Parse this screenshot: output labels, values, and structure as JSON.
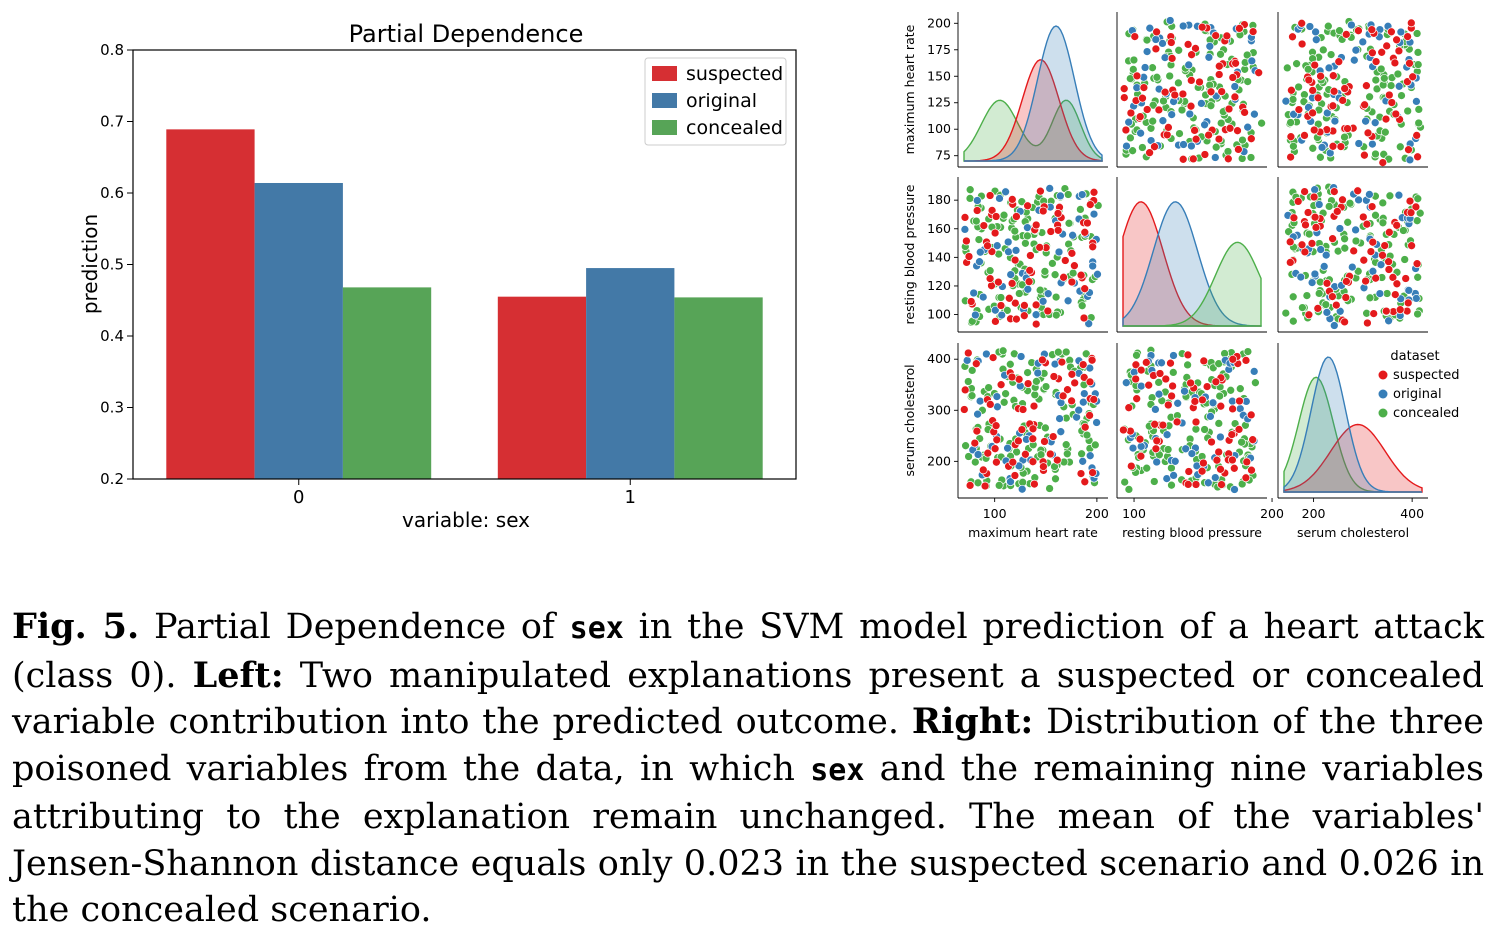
{
  "colors": {
    "suspected": "#d62f33",
    "original": "#4379a7",
    "concealed": "#57a457"
  },
  "scatter_colors": {
    "suspected": "#e41a1c",
    "original": "#377eb8",
    "concealed": "#4daf4a"
  },
  "chart_data": [
    {
      "type": "bar",
      "title": "Partial Dependence",
      "xlabel": "variable: sex",
      "ylabel": "prediction",
      "categories": [
        "0",
        "1"
      ],
      "ylim": [
        0.2,
        0.8
      ],
      "yticks": [
        "0.2",
        "0.3",
        "0.4",
        "0.5",
        "0.6",
        "0.7",
        "0.8"
      ],
      "legend_position": "top-right",
      "series": [
        {
          "name": "suspected",
          "values": [
            0.689,
            0.455
          ]
        },
        {
          "name": "original",
          "values": [
            0.614,
            0.495
          ]
        },
        {
          "name": "concealed",
          "values": [
            0.468,
            0.454
          ]
        }
      ]
    },
    {
      "type": "scatter",
      "subtype": "pairplot",
      "variables": [
        "maximum heart rate",
        "resting blood pressure",
        "serum cholesterol"
      ],
      "legend_title": "dataset",
      "legend": [
        "suspected",
        "original",
        "concealed"
      ],
      "legend_position": "right",
      "ticks": {
        "maximum heart rate_x": [
          "100",
          "200"
        ],
        "resting blood pressure_x": [
          "100",
          "200"
        ],
        "serum cholesterol_x": [
          "200",
          "400"
        ],
        "maximum heart rate_y": [
          "75",
          "100",
          "125",
          "150",
          "175",
          "200"
        ],
        "resting blood pressure_y": [
          "100",
          "120",
          "140",
          "160",
          "180"
        ],
        "serum cholesterol_y": [
          "200",
          "300",
          "400"
        ]
      },
      "ranges": {
        "maximum heart rate": [
          70,
          205
        ],
        "resting blood pressure": [
          92,
          192
        ],
        "serum cholesterol": [
          140,
          420
        ]
      },
      "density_peaks": {
        "maximum heart rate": {
          "suspected": 145,
          "original": 160,
          "concealed": 110
        },
        "resting blood pressure": {
          "suspected": 105,
          "original": 130,
          "concealed": 175
        },
        "serum cholesterol": {
          "suspected": 270,
          "original": 230,
          "concealed": 205
        }
      }
    }
  ],
  "caption": {
    "fig_label": "Fig. 5.",
    "part1": " Partial Dependence of ",
    "code1": "sex",
    "part2": " in the SVM model prediction of a heart attack (class 0). ",
    "left_label": "Left:",
    "part3": " Two manipulated explanations present a suspected or concealed variable contribution into the predicted outcome. ",
    "right_label": "Right:",
    "part4": " Distribution of the three poisoned variables from the data, in which ",
    "code2": "sex",
    "part5": " and the remaining nine variables attributing to the explanation remain unchanged. The mean of the variables' Jensen-Shannon distance equals only 0.023 in the suspected scenario and 0.026 in the concealed scenario."
  }
}
